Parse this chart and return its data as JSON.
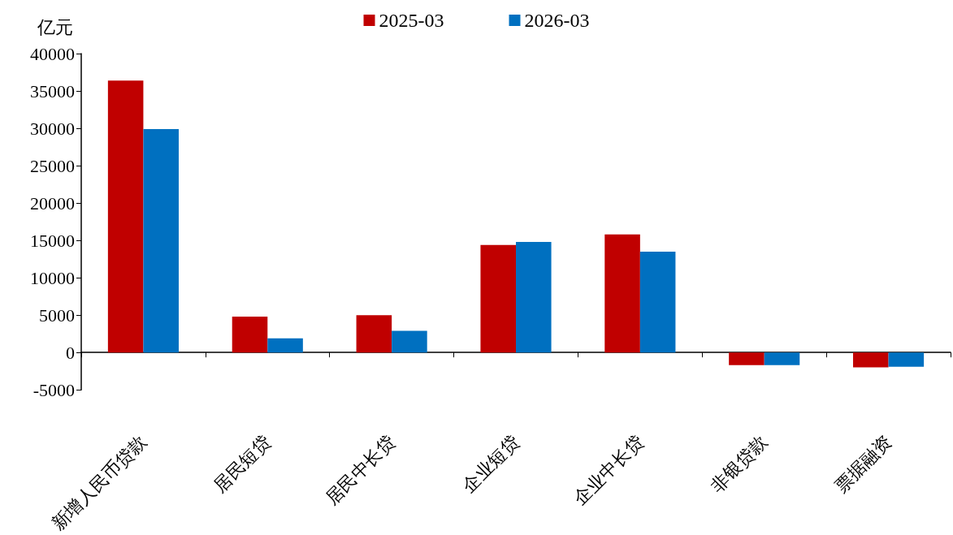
{
  "chart_data": {
    "type": "bar",
    "ylabel": "亿元",
    "categories": [
      "新增人民币贷款",
      "居民短贷",
      "居民中长贷",
      "企业短贷",
      "企业中长贷",
      "非银贷款",
      "票据融资"
    ],
    "series": [
      {
        "name": "2025-03",
        "color": "#c00000",
        "values": [
          36400,
          4800,
          5000,
          14400,
          15800,
          -1700,
          -2000
        ]
      },
      {
        "name": "2026-03",
        "color": "#0070c0",
        "values": [
          29900,
          1900,
          2900,
          14800,
          13500,
          -1700,
          -1900
        ]
      }
    ],
    "ylim": [
      -5000,
      40000
    ],
    "yticks": [
      -5000,
      0,
      5000,
      10000,
      15000,
      20000,
      25000,
      30000,
      35000,
      40000
    ],
    "legend": "top"
  }
}
